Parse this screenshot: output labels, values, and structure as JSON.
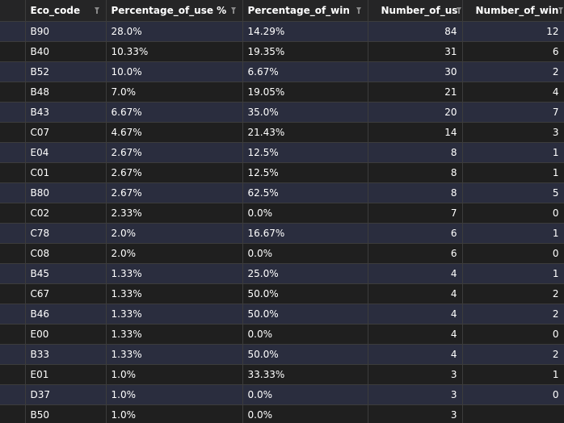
{
  "table": {
    "columns": [
      {
        "key": "eco_code",
        "label": "Eco_code",
        "numeric": false
      },
      {
        "key": "pct_use",
        "label": "Percentage_of_use %",
        "numeric": false
      },
      {
        "key": "pct_win",
        "label": "Percentage_of_win %",
        "numeric": false
      },
      {
        "key": "num_use",
        "label": "Number_of_use",
        "numeric": true
      },
      {
        "key": "num_wins",
        "label": "Number_of_wins",
        "numeric": true
      }
    ],
    "filter_icon": "filter-icon",
    "rows": [
      {
        "eco_code": "B90",
        "pct_use": "28.0%",
        "pct_win": "14.29%",
        "num_use": "84",
        "num_wins": "12"
      },
      {
        "eco_code": "B40",
        "pct_use": "10.33%",
        "pct_win": "19.35%",
        "num_use": "31",
        "num_wins": "6"
      },
      {
        "eco_code": "B52",
        "pct_use": "10.0%",
        "pct_win": "6.67%",
        "num_use": "30",
        "num_wins": "2"
      },
      {
        "eco_code": "B48",
        "pct_use": "7.0%",
        "pct_win": "19.05%",
        "num_use": "21",
        "num_wins": "4"
      },
      {
        "eco_code": "B43",
        "pct_use": "6.67%",
        "pct_win": "35.0%",
        "num_use": "20",
        "num_wins": "7"
      },
      {
        "eco_code": "C07",
        "pct_use": "4.67%",
        "pct_win": "21.43%",
        "num_use": "14",
        "num_wins": "3"
      },
      {
        "eco_code": "E04",
        "pct_use": "2.67%",
        "pct_win": "12.5%",
        "num_use": "8",
        "num_wins": "1"
      },
      {
        "eco_code": "C01",
        "pct_use": "2.67%",
        "pct_win": "12.5%",
        "num_use": "8",
        "num_wins": "1"
      },
      {
        "eco_code": "B80",
        "pct_use": "2.67%",
        "pct_win": "62.5%",
        "num_use": "8",
        "num_wins": "5"
      },
      {
        "eco_code": "C02",
        "pct_use": "2.33%",
        "pct_win": "0.0%",
        "num_use": "7",
        "num_wins": "0"
      },
      {
        "eco_code": "C78",
        "pct_use": "2.0%",
        "pct_win": "16.67%",
        "num_use": "6",
        "num_wins": "1"
      },
      {
        "eco_code": "C08",
        "pct_use": "2.0%",
        "pct_win": "0.0%",
        "num_use": "6",
        "num_wins": "0"
      },
      {
        "eco_code": "B45",
        "pct_use": "1.33%",
        "pct_win": "25.0%",
        "num_use": "4",
        "num_wins": "1"
      },
      {
        "eco_code": "C67",
        "pct_use": "1.33%",
        "pct_win": "50.0%",
        "num_use": "4",
        "num_wins": "2"
      },
      {
        "eco_code": "B46",
        "pct_use": "1.33%",
        "pct_win": "50.0%",
        "num_use": "4",
        "num_wins": "2"
      },
      {
        "eco_code": "E00",
        "pct_use": "1.33%",
        "pct_win": "0.0%",
        "num_use": "4",
        "num_wins": "0"
      },
      {
        "eco_code": "B33",
        "pct_use": "1.33%",
        "pct_win": "50.0%",
        "num_use": "4",
        "num_wins": "2"
      },
      {
        "eco_code": "E01",
        "pct_use": "1.0%",
        "pct_win": "33.33%",
        "num_use": "3",
        "num_wins": "1"
      },
      {
        "eco_code": "D37",
        "pct_use": "1.0%",
        "pct_win": "0.0%",
        "num_use": "3",
        "num_wins": "0"
      },
      {
        "eco_code": "B50",
        "pct_use": "1.0%",
        "pct_win": "0.0%",
        "num_use": "3",
        "num_wins": ""
      }
    ]
  }
}
